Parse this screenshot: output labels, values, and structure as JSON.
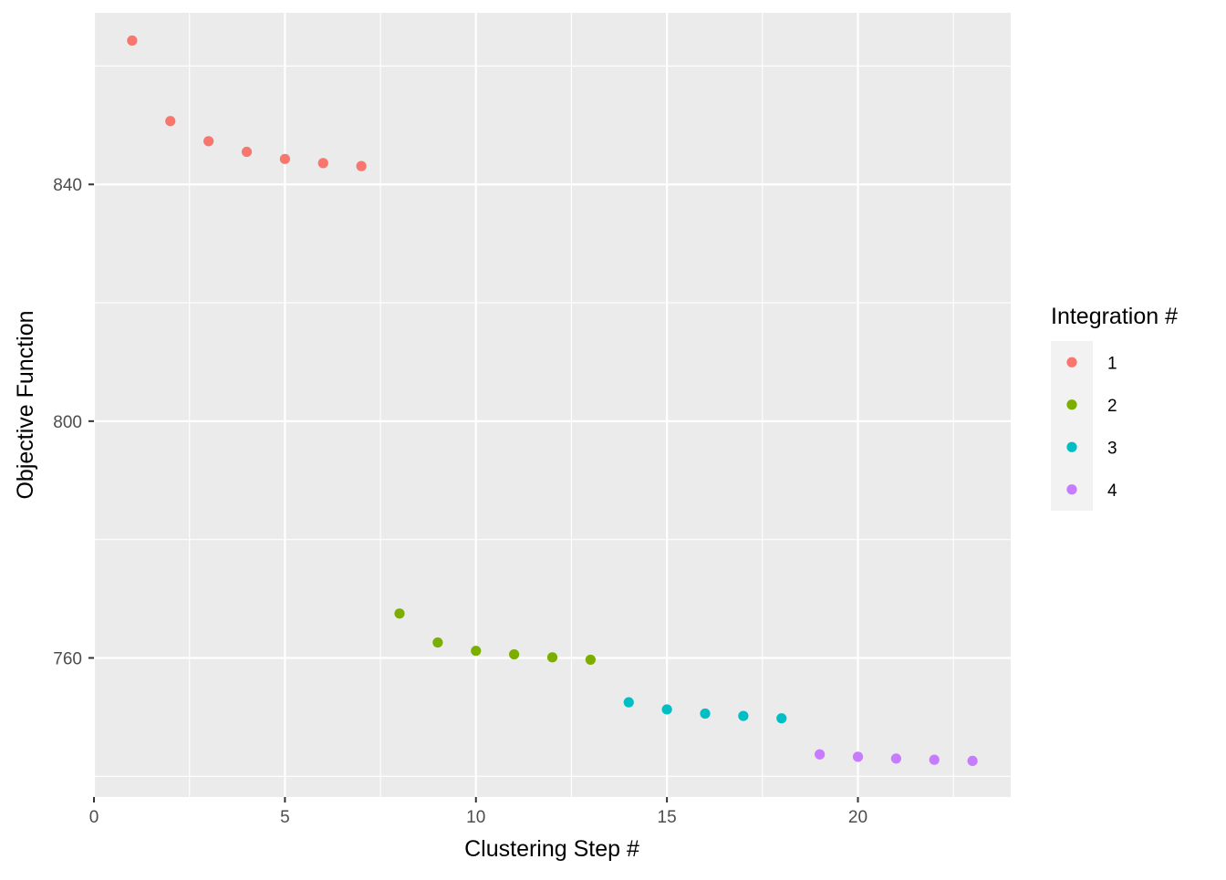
{
  "chart_data": {
    "type": "scatter",
    "title": "",
    "xlabel": "Clustering Step #",
    "ylabel": "Objective Function",
    "xlim": [
      0,
      24
    ],
    "ylim": [
      736.5,
      869
    ],
    "x_ticks": [
      0,
      5,
      10,
      15,
      20
    ],
    "y_ticks": [
      760,
      800,
      840
    ],
    "x_minor_ticks": [
      2.5,
      7.5,
      12.5,
      17.5,
      22.5
    ],
    "y_minor_ticks": [
      740,
      780,
      820,
      860
    ],
    "grid": true,
    "legend": {
      "title": "Integration #",
      "position": "right"
    },
    "series": [
      {
        "name": "1",
        "color": "#F8766D",
        "x": [
          1,
          2,
          3,
          4,
          5,
          6,
          7
        ],
        "y": [
          864.3,
          850.7,
          847.3,
          845.5,
          844.3,
          843.6,
          843.1
        ]
      },
      {
        "name": "2",
        "color": "#7CAE00",
        "x": [
          8,
          9,
          10,
          11,
          12,
          13
        ],
        "y": [
          767.5,
          762.6,
          761.2,
          760.6,
          760.1,
          759.7
        ]
      },
      {
        "name": "3",
        "color": "#00BFC4",
        "x": [
          14,
          15,
          16,
          17,
          18
        ],
        "y": [
          752.5,
          751.3,
          750.6,
          750.2,
          749.8
        ]
      },
      {
        "name": "4",
        "color": "#C77CFF",
        "x": [
          19,
          20,
          21,
          22,
          23
        ],
        "y": [
          743.7,
          743.3,
          743.0,
          742.8,
          742.6
        ]
      }
    ]
  }
}
